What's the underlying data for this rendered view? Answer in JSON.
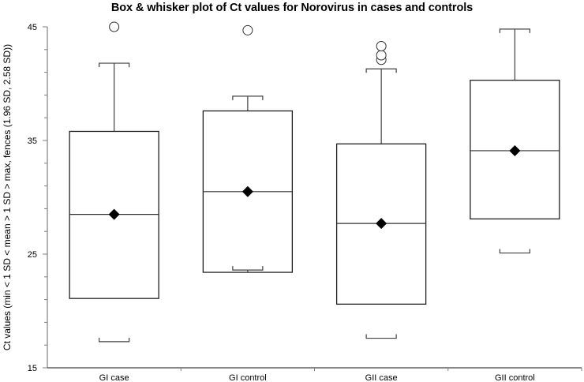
{
  "chart_data": {
    "type": "boxplot",
    "title": "Box & whisker plot of Ct values for Norovirus in cases and controls",
    "xlabel": "",
    "ylabel": "Ct values (min < 1 SD < mean > 1 SD > max, fences (1.96 SD, 2.58 SD))",
    "ylim": [
      15,
      45
    ],
    "yticks": [
      15,
      25,
      35,
      45
    ],
    "y_minor_step": 2,
    "grid": false,
    "legend": null,
    "categories": [
      "GI case",
      "GI control",
      "GII case",
      "GII control"
    ],
    "series": [
      {
        "name": "GI case",
        "whisker_low": 17.3,
        "box_low": 21.1,
        "median": 28.5,
        "mean": 28.5,
        "box_high": 35.8,
        "whisker_high": 41.8,
        "outliers": [
          45.0
        ]
      },
      {
        "name": "GI control",
        "whisker_low": 23.6,
        "box_low": 23.4,
        "median": 30.5,
        "mean": 30.5,
        "box_high": 37.6,
        "whisker_high": 38.9,
        "outliers": [
          44.7
        ]
      },
      {
        "name": "GII case",
        "whisker_low": 17.6,
        "box_low": 20.6,
        "median": 27.7,
        "mean": 27.7,
        "box_high": 34.7,
        "whisker_high": 41.3,
        "outliers": [
          42.1,
          42.5,
          43.3
        ]
      },
      {
        "name": "GII control",
        "whisker_low": 25.1,
        "box_low": 28.1,
        "median": 34.1,
        "mean": 34.1,
        "box_high": 40.3,
        "whisker_high": 44.8,
        "outliers": []
      }
    ]
  },
  "axis": {
    "y_tick_labels": [
      "45",
      "35",
      "25",
      "15"
    ]
  }
}
